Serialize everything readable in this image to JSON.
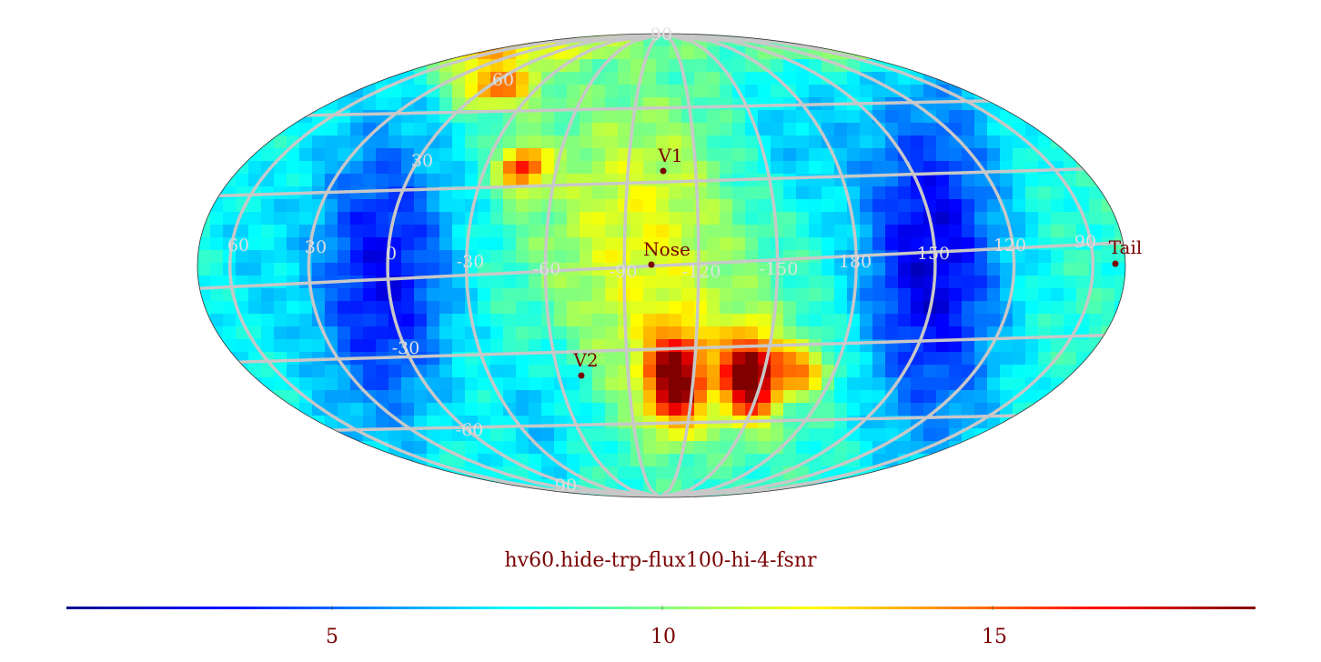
{
  "map": {
    "projection": "mollweide",
    "colormap": "jet",
    "graticule_color": "#c8c8c8",
    "lat_labels": {
      "north_pole": "90",
      "n60": "60",
      "n30": "30",
      "s30": "-30",
      "s60": "-60",
      "south_pole": "90"
    },
    "lon_labels": [
      "60",
      "30",
      "0",
      "-30",
      "-60",
      "-90",
      "-120",
      "-150",
      "180",
      "150",
      "120",
      "90"
    ],
    "markers": [
      {
        "id": "nose",
        "label": "Nose",
        "color": "#7a0000"
      },
      {
        "id": "v1",
        "label": "V1",
        "color": "#7a0000"
      },
      {
        "id": "v2",
        "label": "V2",
        "color": "#7a0000"
      },
      {
        "id": "tail",
        "label": "Tail",
        "color": "#7a0000"
      }
    ]
  },
  "title": "hv60.hide-trp-flux100-hi-4-fsnr",
  "colorbar": {
    "min": 0,
    "max": 18,
    "tick_values": [
      5,
      10,
      15
    ],
    "tick_labels": [
      "5",
      "10",
      "15"
    ],
    "label_color": "#7a0000"
  }
}
